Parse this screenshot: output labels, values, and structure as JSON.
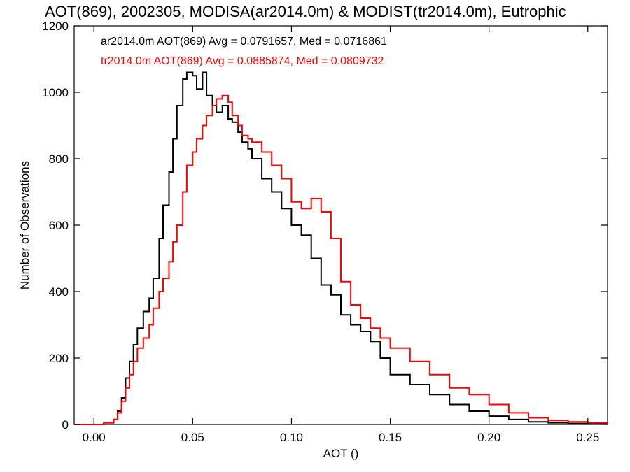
{
  "chart_data": {
    "type": "line",
    "title": "AOT(869), 2002305, MODISA(ar2014.0m) & MODIST(tr2014.0m), Eutrophic",
    "xlabel": "AOT ()",
    "ylabel": "Number of Observations",
    "xlim": [
      -0.01,
      0.26
    ],
    "ylim": [
      0,
      1200
    ],
    "xticks": [
      "0.00",
      "0.05",
      "0.10",
      "0.15",
      "0.20",
      "0.25"
    ],
    "yticks": [
      "0",
      "200",
      "400",
      "600",
      "800",
      "1000",
      "1200"
    ],
    "legend_position": "top-left",
    "grid": false,
    "series": [
      {
        "name": "ar2014.0m AOT(869) Avg = 0.0791657, Med = 0.0716861",
        "color": "#000000",
        "x": [
          -0.01,
          0.0,
          0.005,
          0.01,
          0.012,
          0.014,
          0.016,
          0.018,
          0.02,
          0.022,
          0.025,
          0.028,
          0.03,
          0.033,
          0.035,
          0.038,
          0.04,
          0.042,
          0.045,
          0.047,
          0.05,
          0.052,
          0.055,
          0.057,
          0.06,
          0.062,
          0.065,
          0.068,
          0.07,
          0.073,
          0.075,
          0.078,
          0.08,
          0.085,
          0.09,
          0.095,
          0.1,
          0.105,
          0.11,
          0.115,
          0.12,
          0.125,
          0.13,
          0.135,
          0.14,
          0.145,
          0.15,
          0.16,
          0.17,
          0.18,
          0.19,
          0.2,
          0.21,
          0.22,
          0.23,
          0.24,
          0.25,
          0.26
        ],
        "values": [
          0,
          0,
          5,
          15,
          40,
          80,
          140,
          190,
          240,
          290,
          340,
          380,
          440,
          560,
          660,
          760,
          860,
          960,
          1040,
          1060,
          1050,
          1010,
          1060,
          990,
          960,
          940,
          960,
          920,
          910,
          880,
          850,
          830,
          800,
          740,
          700,
          650,
          600,
          570,
          500,
          420,
          390,
          330,
          300,
          280,
          250,
          200,
          150,
          120,
          90,
          60,
          40,
          25,
          15,
          8,
          5,
          3,
          2,
          1
        ]
      },
      {
        "name": "tr2014.0m AOT(869) Avg = 0.0885874, Med = 0.0809732",
        "color": "#ff0000",
        "x": [
          -0.01,
          0.0,
          0.005,
          0.01,
          0.012,
          0.014,
          0.016,
          0.018,
          0.02,
          0.022,
          0.025,
          0.028,
          0.03,
          0.033,
          0.035,
          0.038,
          0.04,
          0.042,
          0.045,
          0.047,
          0.05,
          0.052,
          0.055,
          0.057,
          0.06,
          0.062,
          0.065,
          0.068,
          0.07,
          0.073,
          0.075,
          0.078,
          0.08,
          0.085,
          0.09,
          0.095,
          0.1,
          0.105,
          0.11,
          0.115,
          0.12,
          0.125,
          0.13,
          0.135,
          0.14,
          0.145,
          0.15,
          0.16,
          0.17,
          0.18,
          0.19,
          0.2,
          0.21,
          0.22,
          0.23,
          0.24,
          0.25,
          0.26
        ],
        "values": [
          0,
          0,
          5,
          15,
          35,
          70,
          110,
          150,
          190,
          230,
          260,
          300,
          350,
          400,
          440,
          490,
          550,
          600,
          700,
          780,
          820,
          860,
          900,
          930,
          960,
          980,
          990,
          970,
          930,
          900,
          870,
          860,
          850,
          820,
          780,
          740,
          670,
          650,
          680,
          640,
          560,
          430,
          360,
          320,
          290,
          260,
          230,
          190,
          150,
          110,
          90,
          60,
          35,
          20,
          12,
          8,
          5,
          2
        ]
      }
    ]
  }
}
